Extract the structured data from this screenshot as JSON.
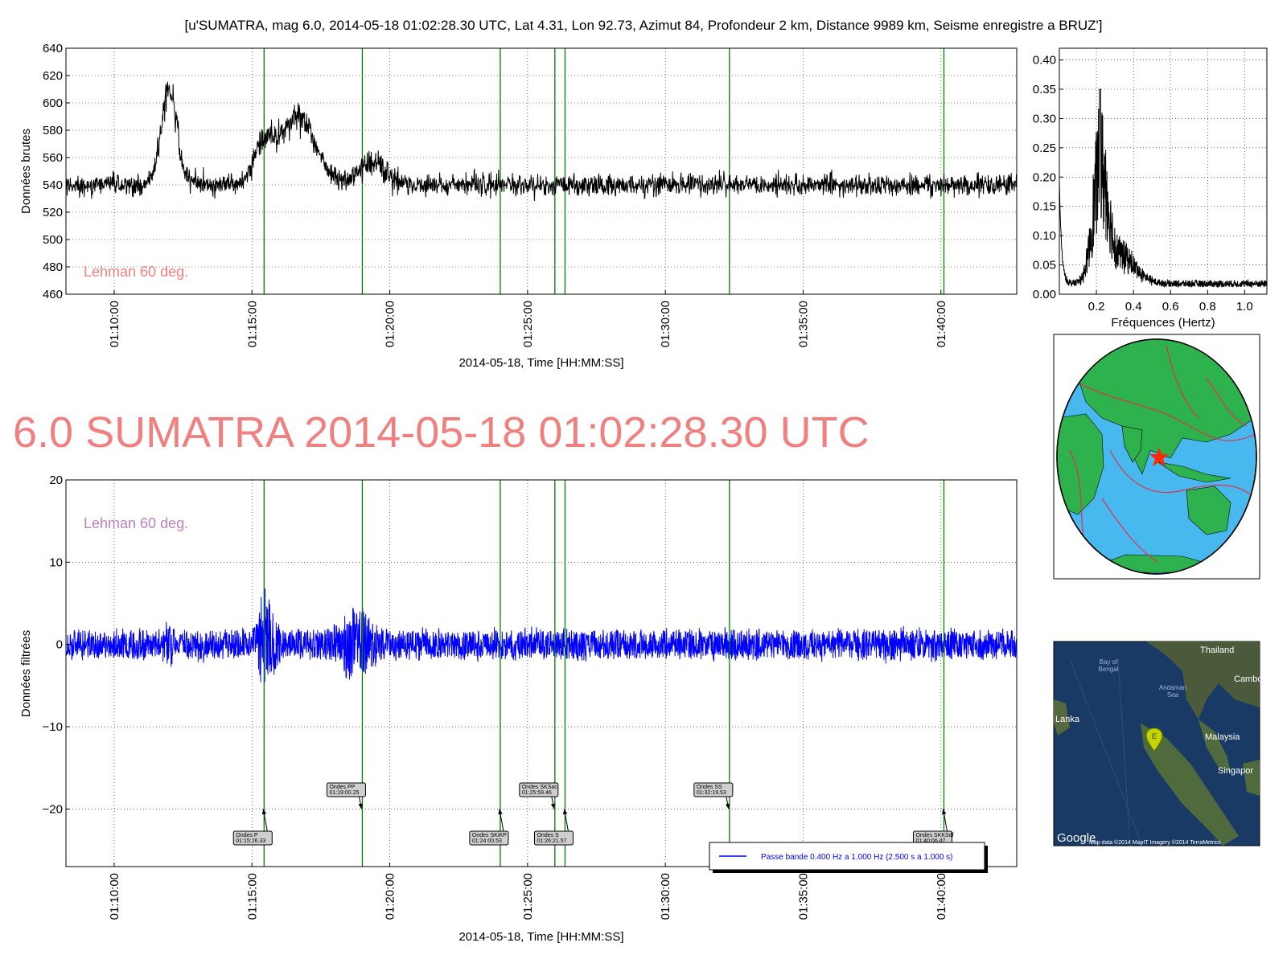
{
  "suptitle": "[u'SUMATRA, mag 6.0, 2014-05-18 01:02:28.30 UTC, Lat 4.31, Lon 92.73, Azimut  84, Profondeur 2 km, Distance  9989 km, Seisme enregistre a BRUZ']",
  "big_title": "6.0 SUMATRA 2014-05-18 01:02:28.30 UTC",
  "colors": {
    "raw": "#000000",
    "filtered": "#0000ff",
    "phase_line": "#008000",
    "title": "#f08080",
    "lehman_top": "#f08080",
    "lehman_bottom": "#c080c0"
  },
  "chart_data": [
    {
      "type": "line",
      "name": "raw",
      "ylabel": "Données brutes",
      "xlabel": "2014-05-18, Time [HH:MM:SS]",
      "xlim": [
        "01:08:15",
        "01:42:45"
      ],
      "ylim": [
        460,
        640
      ],
      "yticks": [
        460,
        480,
        500,
        520,
        540,
        560,
        580,
        600,
        620,
        640
      ],
      "xticks": [
        "01:10:00",
        "01:15:00",
        "01:20:00",
        "01:25:00",
        "01:30:00",
        "01:35:00",
        "01:40:00"
      ],
      "grid": true,
      "annotation": "Lehman 60 deg.",
      "baseline": 540,
      "noise_amplitude": 12,
      "events": [
        {
          "time": "01:12:00",
          "peak": 618
        },
        {
          "time": "01:16:40",
          "peak": 598
        },
        {
          "time": "01:15:25",
          "peak": 575
        },
        {
          "time": "01:19:20",
          "peak": 565
        }
      ],
      "phase_times": [
        "01:15:26.33",
        "01:19:00.25",
        "01:24:00.53",
        "01:25:59.46",
        "01:26:21.57",
        "01:32:19.53",
        "01:40:06.47"
      ]
    },
    {
      "type": "line",
      "name": "spectrum",
      "xlabel": "Fréquences (Hertz)",
      "xlim": [
        0.0,
        1.12
      ],
      "ylim": [
        0.0,
        0.42
      ],
      "xticks": [
        0.2,
        0.4,
        0.6,
        0.8,
        1.0
      ],
      "yticks": [
        0.0,
        0.05,
        0.1,
        0.15,
        0.2,
        0.25,
        0.3,
        0.35,
        0.4
      ],
      "ytick_labels": [
        "0.00",
        "0.05",
        "0.10",
        "0.15",
        "0.20",
        "0.25",
        "0.30",
        "0.35",
        "0.40"
      ],
      "peak_frequency": 0.22,
      "peak_value": 0.35,
      "grid": true
    },
    {
      "type": "line",
      "name": "filtered",
      "ylabel": "Données filtrées",
      "xlabel": "2014-05-18, Time [HH:MM:SS]",
      "xlim": [
        "01:08:15",
        "01:42:45"
      ],
      "ylim": [
        -27,
        20
      ],
      "yticks": [
        -20,
        -10,
        0,
        10,
        20
      ],
      "ytick_labels": [
        "−20",
        "−10",
        "0",
        "10",
        "20"
      ],
      "xticks": [
        "01:10:00",
        "01:15:00",
        "01:20:00",
        "01:25:00",
        "01:30:00",
        "01:35:00",
        "01:40:00"
      ],
      "grid": true,
      "annotation": "Lehman 60 deg.",
      "legend": "Passe bande 0.400 Hz a 1.000 Hz (2.500 s a 1.000 s)",
      "legend_position": "lower-right",
      "noise_amplitude": 2,
      "events": [
        {
          "time": "01:15:30",
          "max": 8,
          "min": -7
        },
        {
          "time": "01:18:40",
          "max": 5.5,
          "min": -5.5
        },
        {
          "time": "01:12:00",
          "max": 3.5,
          "min": -4
        }
      ],
      "phases": [
        {
          "label": "Ondes P",
          "time": "01:15:26.33",
          "arrow_y": -20,
          "box_row": "low"
        },
        {
          "label": "Ondes PP",
          "time": "01:19:00.25",
          "arrow_y": -20,
          "box_row": "high"
        },
        {
          "label": "Ondes SKiKP",
          "time": "01:24:00.53",
          "arrow_y": -20,
          "box_row": "low"
        },
        {
          "label": "Ondes SKSac",
          "time": "01:25:59.46",
          "arrow_y": -20,
          "box_row": "high"
        },
        {
          "label": "Ondes S",
          "time": "01:26:21.57",
          "arrow_y": -20,
          "box_row": "low"
        },
        {
          "label": "Ondes SS",
          "time": "01:32:19.53",
          "arrow_y": -20,
          "box_row": "high"
        },
        {
          "label": "Ondes SKKSdf",
          "time": "01:40:06.47",
          "arrow_y": -20,
          "box_row": "low"
        }
      ]
    }
  ],
  "globe": {
    "marker": "red-star"
  },
  "satellite_map": {
    "labels": [
      {
        "text": "Thailand"
      },
      {
        "text": "Bay of\nBengal"
      },
      {
        "text": "Cambo"
      },
      {
        "text": "Andaman\nSea"
      },
      {
        "text": "Lanka"
      },
      {
        "text": "Malaysia"
      },
      {
        "text": "Singapor"
      }
    ],
    "marker_label": "E",
    "google_logo": "Google",
    "credits": "Map data ©2014 MapIT  Imagery ©2014 TerraMetrics"
  }
}
